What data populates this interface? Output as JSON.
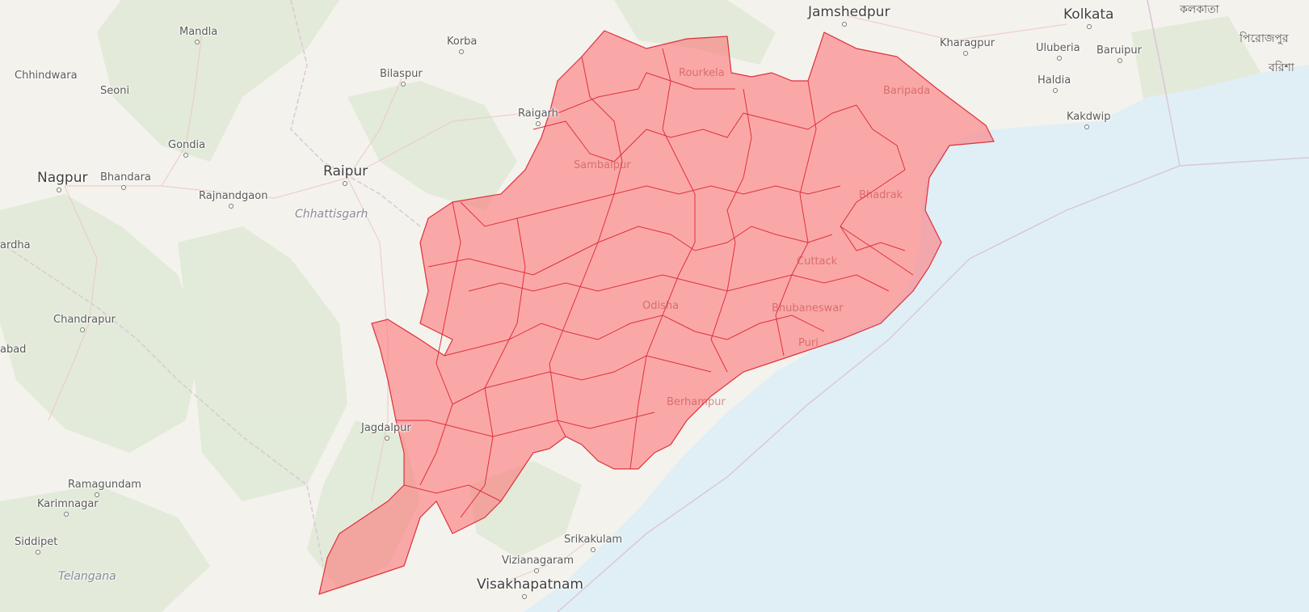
{
  "map": {
    "colors": {
      "land": "#f4f2ec",
      "forest": "#dfe9d6",
      "water": "#e0eff5",
      "district_fill": "#ff6b6f",
      "district_stroke": "#e0303c",
      "boundary": "#d9c8d8"
    },
    "cities": [
      {
        "id": "mandla",
        "name": "Mandla"
      },
      {
        "id": "chhindwara",
        "name": "Chhindwara"
      },
      {
        "id": "seoni",
        "name": "Seoni"
      },
      {
        "id": "gondia",
        "name": "Gondia"
      },
      {
        "id": "nagpur",
        "name": "Nagpur"
      },
      {
        "id": "bhandara",
        "name": "Bhandara"
      },
      {
        "id": "rajnandgaon",
        "name": "Rajnandgaon"
      },
      {
        "id": "raipur",
        "name": "Raipur"
      },
      {
        "id": "wardha",
        "name": "ardha"
      },
      {
        "id": "chandrapur",
        "name": "Chandrapur"
      },
      {
        "id": "abad",
        "name": "abad"
      },
      {
        "id": "bilaspur",
        "name": "Bilaspur"
      },
      {
        "id": "korba",
        "name": "Korba"
      },
      {
        "id": "raigarh",
        "name": "Raigarh"
      },
      {
        "id": "jamshedpur",
        "name": "Jamshedpur"
      },
      {
        "id": "kolkata",
        "name": "Kolkata"
      },
      {
        "id": "kharagpur",
        "name": "Kharagpur"
      },
      {
        "id": "uluberia",
        "name": "Uluberia"
      },
      {
        "id": "baruipur",
        "name": "Baruipur"
      },
      {
        "id": "haldia",
        "name": "Haldia"
      },
      {
        "id": "kakdwip",
        "name": "Kakdwip"
      },
      {
        "id": "jagdalpur",
        "name": "Jagdalpur"
      },
      {
        "id": "ramagundam",
        "name": "Ramagundam"
      },
      {
        "id": "karimnagar",
        "name": "Karimnagar"
      },
      {
        "id": "siddipet",
        "name": "Siddipet"
      },
      {
        "id": "srikakulam",
        "name": "Srikakulam"
      },
      {
        "id": "vizianagaram",
        "name": "Vizianagaram"
      },
      {
        "id": "visakhapatnam",
        "name": "Visakhapatnam"
      },
      {
        "id": "rourkela",
        "name": "Rourkela"
      },
      {
        "id": "baripada",
        "name": "Baripada"
      },
      {
        "id": "sambalpur",
        "name": "Sambalpur"
      },
      {
        "id": "bhadrak",
        "name": "Bhadrak"
      },
      {
        "id": "cuttack",
        "name": "Cuttack"
      },
      {
        "id": "bhubaneswar",
        "name": "Bhubaneswar"
      },
      {
        "id": "puri",
        "name": "Puri"
      },
      {
        "id": "odisha",
        "name": "Odisha"
      },
      {
        "id": "berhampur",
        "name": "Berhampur"
      }
    ],
    "regions": [
      {
        "id": "chhattisgarh",
        "name": "Chhattisgarh"
      },
      {
        "id": "telangana",
        "name": "Telangana"
      }
    ],
    "bengali_labels": [
      {
        "id": "bn-top",
        "text": "কলকাতা"
      },
      {
        "id": "bn-firozpur",
        "text": "পিরোজপুর"
      },
      {
        "id": "bn-barishal",
        "text": "বরিশা"
      }
    ]
  }
}
